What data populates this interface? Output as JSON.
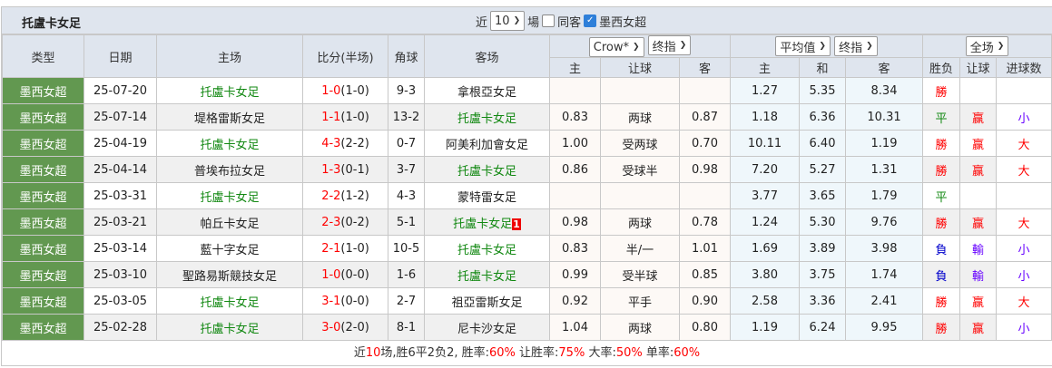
{
  "title": "托盧卡女足",
  "controls": {
    "recent_label": "近",
    "count": "10",
    "count_unit": "場",
    "same_home_label": "同客",
    "same_home_checked": false,
    "league_label": "墨西女超",
    "league_checked": true
  },
  "headers": {
    "type": "类型",
    "date": "日期",
    "home": "主场",
    "score": "比分(半场)",
    "corner": "角球",
    "away": "客场",
    "company_select": "Crow*",
    "ah_select": "终指",
    "avg_select": "平均值",
    "eu_select": "终指",
    "scope_select": "全场",
    "ah_home": "主",
    "ah_line": "让球",
    "ah_away": "客",
    "eu_home": "主",
    "eu_draw": "和",
    "eu_away": "客",
    "result": "胜负",
    "handicap": "让球",
    "goals": "进球数"
  },
  "colors": {
    "type_bg": "#629850",
    "team_highlight": "#118811",
    "score": "#ff0000",
    "win": "#ff0000",
    "draw": "#118811",
    "loss": "#0000cc"
  },
  "rows": [
    {
      "type": "墨西女超",
      "date": "25-07-20",
      "home": "托盧卡女足",
      "home_hl": true,
      "ft": "1-0",
      "ht": "(1-0)",
      "corner": "9-3",
      "away": "拿根亞女足",
      "away_hl": false,
      "badge": "",
      "ah_h": "",
      "ah_l": "",
      "ah_a": "",
      "eu_h": "1.27",
      "eu_d": "5.35",
      "eu_a": "8.34",
      "res": "勝",
      "hc": "",
      "goals": ""
    },
    {
      "type": "墨西女超",
      "date": "25-07-14",
      "home": "堤格雷斯女足",
      "home_hl": false,
      "ft": "1-1",
      "ht": "(1-0)",
      "corner": "13-2",
      "away": "托盧卡女足",
      "away_hl": true,
      "badge": "",
      "ah_h": "0.83",
      "ah_l": "两球",
      "ah_a": "0.87",
      "eu_h": "1.18",
      "eu_d": "6.36",
      "eu_a": "10.31",
      "res": "平",
      "hc": "赢",
      "goals": "小"
    },
    {
      "type": "墨西女超",
      "date": "25-04-19",
      "home": "托盧卡女足",
      "home_hl": true,
      "ft": "4-3",
      "ht": "(2-2)",
      "corner": "0-7",
      "away": "阿美利加會女足",
      "away_hl": false,
      "badge": "",
      "ah_h": "1.00",
      "ah_l": "受两球",
      "ah_a": "0.70",
      "eu_h": "10.11",
      "eu_d": "6.40",
      "eu_a": "1.19",
      "res": "勝",
      "hc": "赢",
      "goals": "大"
    },
    {
      "type": "墨西女超",
      "date": "25-04-14",
      "home": "普埃布拉女足",
      "home_hl": false,
      "ft": "1-3",
      "ht": "(0-1)",
      "corner": "3-7",
      "away": "托盧卡女足",
      "away_hl": true,
      "badge": "",
      "ah_h": "0.86",
      "ah_l": "受球半",
      "ah_a": "0.98",
      "eu_h": "7.20",
      "eu_d": "5.27",
      "eu_a": "1.31",
      "res": "勝",
      "hc": "赢",
      "goals": "大"
    },
    {
      "type": "墨西女超",
      "date": "25-03-31",
      "home": "托盧卡女足",
      "home_hl": true,
      "ft": "2-2",
      "ht": "(1-2)",
      "corner": "4-3",
      "away": "蒙特雷女足",
      "away_hl": false,
      "badge": "",
      "ah_h": "",
      "ah_l": "",
      "ah_a": "",
      "eu_h": "3.77",
      "eu_d": "3.65",
      "eu_a": "1.79",
      "res": "平",
      "hc": "",
      "goals": ""
    },
    {
      "type": "墨西女超",
      "date": "25-03-21",
      "home": "帕丘卡女足",
      "home_hl": false,
      "ft": "2-3",
      "ht": "(0-2)",
      "corner": "5-1",
      "away": "托盧卡女足",
      "away_hl": true,
      "badge": "1",
      "ah_h": "0.98",
      "ah_l": "两球",
      "ah_a": "0.78",
      "eu_h": "1.24",
      "eu_d": "5.30",
      "eu_a": "9.76",
      "res": "勝",
      "hc": "赢",
      "goals": "大"
    },
    {
      "type": "墨西女超",
      "date": "25-03-14",
      "home": "藍十字女足",
      "home_hl": false,
      "ft": "2-1",
      "ht": "(1-0)",
      "corner": "10-5",
      "away": "托盧卡女足",
      "away_hl": true,
      "badge": "",
      "ah_h": "0.83",
      "ah_l": "半/一",
      "ah_a": "1.01",
      "eu_h": "1.69",
      "eu_d": "3.89",
      "eu_a": "3.98",
      "res": "負",
      "hc": "輸",
      "goals": "小"
    },
    {
      "type": "墨西女超",
      "date": "25-03-10",
      "home": "聖路易斯競技女足",
      "home_hl": false,
      "ft": "1-0",
      "ht": "(0-0)",
      "corner": "1-6",
      "away": "托盧卡女足",
      "away_hl": true,
      "badge": "",
      "ah_h": "0.99",
      "ah_l": "受半球",
      "ah_a": "0.85",
      "eu_h": "3.80",
      "eu_d": "3.75",
      "eu_a": "1.74",
      "res": "負",
      "hc": "輸",
      "goals": "小"
    },
    {
      "type": "墨西女超",
      "date": "25-03-05",
      "home": "托盧卡女足",
      "home_hl": true,
      "ft": "3-1",
      "ht": "(0-0)",
      "corner": "2-7",
      "away": "祖亞雷斯女足",
      "away_hl": false,
      "badge": "",
      "ah_h": "0.92",
      "ah_l": "平手",
      "ah_a": "0.90",
      "eu_h": "2.58",
      "eu_d": "3.36",
      "eu_a": "2.41",
      "res": "勝",
      "hc": "赢",
      "goals": "大"
    },
    {
      "type": "墨西女超",
      "date": "25-02-28",
      "home": "托盧卡女足",
      "home_hl": true,
      "ft": "3-0",
      "ht": "(2-0)",
      "corner": "8-1",
      "away": "尼卡沙女足",
      "away_hl": false,
      "badge": "",
      "ah_h": "1.04",
      "ah_l": "两球",
      "ah_a": "0.80",
      "eu_h": "1.19",
      "eu_d": "6.24",
      "eu_a": "9.95",
      "res": "勝",
      "hc": "赢",
      "goals": "小"
    }
  ],
  "footer": {
    "p1": "近",
    "n": "10",
    "p2": "场,胜6平2负2, 胜率:",
    "win_rate": "60%",
    "p3": " 让胜率:",
    "hc_rate": "75%",
    "p4": " 大率:",
    "big_rate": "50%",
    "p5": " 单率:",
    "odd_rate": "60%"
  }
}
